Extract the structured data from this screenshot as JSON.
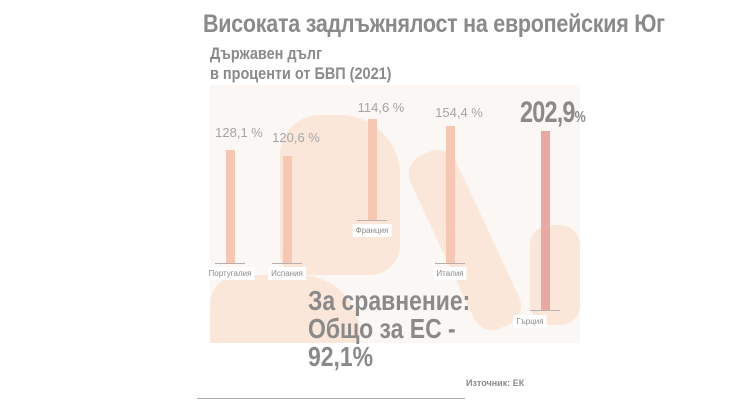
{
  "chart_data": {
    "type": "bar",
    "title": "Високата задлъжнялост на европейския Юг",
    "subtitle": [
      "Държавен дълг",
      "в проценти от БВП (2021)"
    ],
    "categories": [
      "Португалия",
      "Испания",
      "Франция",
      "Италия",
      "Гърция"
    ],
    "values": [
      128.1,
      120.6,
      114.6,
      154.4,
      202.9
    ],
    "value_labels": [
      "128,1 %",
      "120,6 %",
      "114,6 %",
      "154,4 %",
      "202,9"
    ],
    "highlight_unit": "%",
    "bar_color": "#f6c8b4",
    "highlight_color": "#e8a9a4",
    "background": "map of Southern Europe",
    "annotation": [
      "За сравнение:",
      "Общо за ЕС -",
      "92,1%"
    ],
    "source": "Източник: ЕК"
  }
}
